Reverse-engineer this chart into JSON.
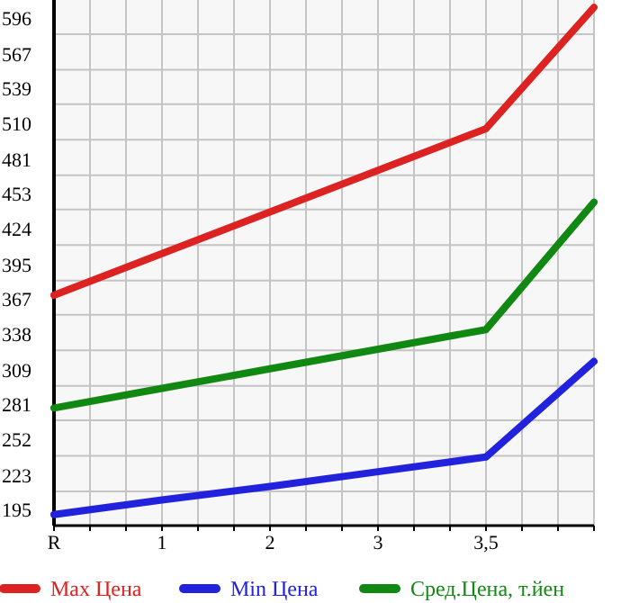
{
  "chart_data": {
    "type": "line",
    "categories": [
      "R",
      "1",
      "2",
      "3",
      "3,5",
      null
    ],
    "series": [
      {
        "name": "Max Цена",
        "color": "#dd2222",
        "values": [
          383,
          417,
          451,
          485,
          519,
          618
        ]
      },
      {
        "name": "Min Цена",
        "color": "#2222dd",
        "values": [
          204,
          216,
          227,
          239,
          251,
          329
        ]
      },
      {
        "name": "Сред.Цена, т.йен",
        "color": "#118811",
        "values": [
          291,
          307,
          323,
          339,
          355,
          459
        ]
      }
    ],
    "ylim": [
      195,
      624
    ],
    "yticks": [
      195,
      223,
      252,
      281,
      309,
      338,
      367,
      395,
      424,
      453,
      481,
      510,
      539,
      567,
      596
    ],
    "grid": true,
    "legend": "bottom",
    "marker": "none",
    "line_style": "solid"
  }
}
